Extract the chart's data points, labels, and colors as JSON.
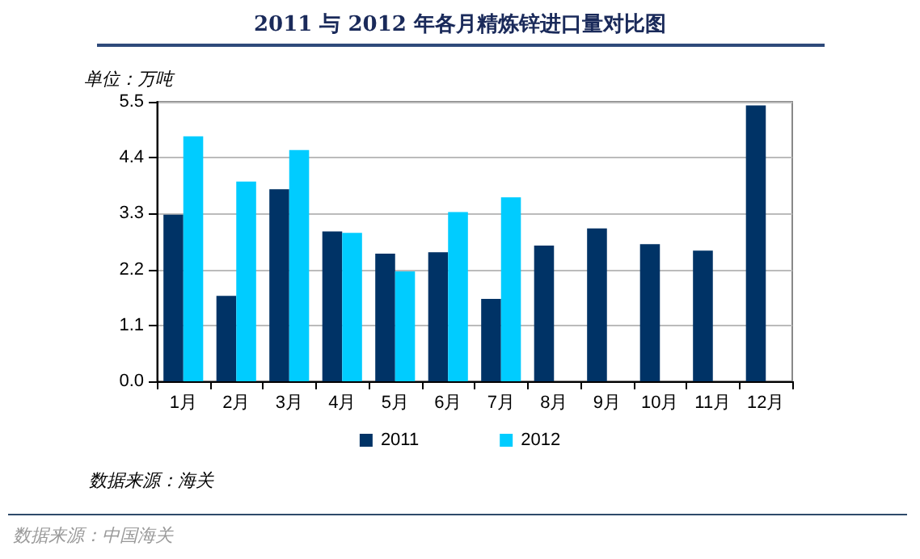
{
  "chart_data": {
    "type": "bar",
    "title": "2011 与 2012 年各月精炼锌进口量对比图",
    "ylabel": "单位：万吨",
    "categories": [
      "1月",
      "2月",
      "3月",
      "4月",
      "5月",
      "6月",
      "7月",
      "8月",
      "9月",
      "10月",
      "11月",
      "12月"
    ],
    "series": [
      {
        "name": "2011",
        "color": "#003366",
        "values": [
          3.28,
          1.68,
          3.78,
          2.95,
          2.51,
          2.54,
          1.62,
          2.67,
          3.01,
          2.7,
          2.57,
          5.43
        ]
      },
      {
        "name": "2012",
        "color": "#00ccff",
        "values": [
          4.82,
          3.93,
          4.55,
          2.92,
          2.16,
          3.33,
          3.62,
          null,
          null,
          null,
          null,
          null
        ]
      }
    ],
    "ylim": [
      0,
      5.5
    ],
    "yticks": [
      {
        "value": 0,
        "label": "0.0"
      },
      {
        "value": 1.1,
        "label": "1.1"
      },
      {
        "value": 2.2,
        "label": "2.2"
      },
      {
        "value": 3.3,
        "label": "3.3"
      },
      {
        "value": 4.4,
        "label": "4.4"
      },
      {
        "value": 5.5,
        "label": "5.5"
      }
    ],
    "grid": "y",
    "legend": "bottom",
    "annotations": [
      "数据来源：海关",
      "数据来源：中国海关"
    ]
  }
}
